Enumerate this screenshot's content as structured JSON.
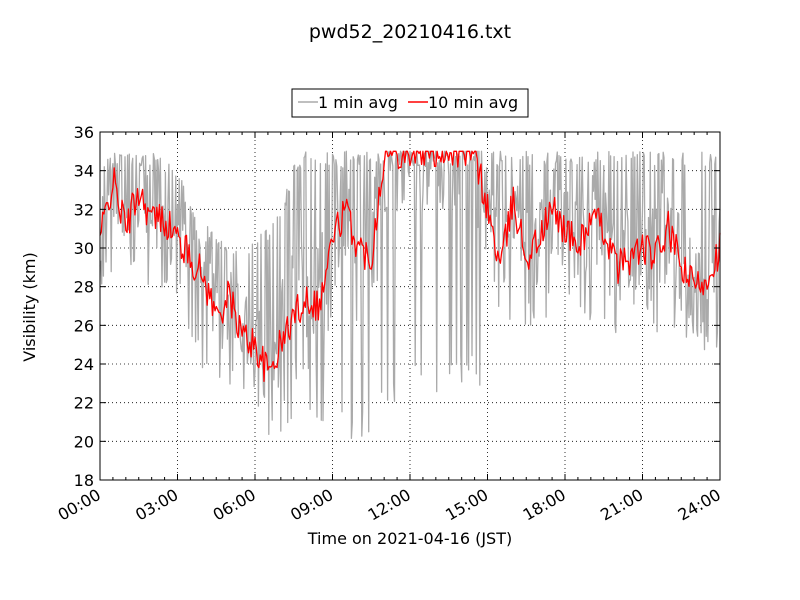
{
  "chart_data": {
    "type": "line",
    "title": "pwd52_20210416.txt",
    "xlabel": "Time on 2021-04-16 (JST)",
    "ylabel": "Visibility (km)",
    "xlim": [
      "00:00",
      "24:00"
    ],
    "ylim": [
      18,
      36
    ],
    "x_ticks": [
      "00:00",
      "03:00",
      "06:00",
      "09:00",
      "12:00",
      "15:00",
      "18:00",
      "21:00",
      "24:00"
    ],
    "y_ticks": [
      18,
      20,
      22,
      24,
      26,
      28,
      30,
      32,
      34,
      36
    ],
    "grid": true,
    "legend_position": "top-center",
    "series": [
      {
        "name": "1 min avg",
        "color": "#aaaaaa",
        "x": [
          "00:00",
          "00:30",
          "01:00",
          "01:30",
          "02:00",
          "02:30",
          "03:00",
          "03:30",
          "04:00",
          "04:30",
          "05:00",
          "05:30",
          "06:00",
          "06:30",
          "07:00",
          "07:30",
          "08:00",
          "08:30",
          "09:00",
          "09:30",
          "10:00",
          "10:30",
          "11:00",
          "11:30",
          "12:00",
          "12:30",
          "13:00",
          "13:30",
          "14:00",
          "14:30",
          "15:00",
          "15:30",
          "16:00",
          "16:30",
          "17:00",
          "17:30",
          "18:00",
          "18:30",
          "19:00",
          "19:30",
          "20:00",
          "20:30",
          "21:00",
          "21:30",
          "22:00",
          "22:30",
          "23:00",
          "23:30",
          "24:00"
        ],
        "low": [
          28.0,
          28.5,
          29.0,
          28.5,
          27.5,
          27.5,
          27.0,
          25.5,
          23.5,
          22.5,
          22.5,
          22.0,
          21.5,
          20.0,
          19.5,
          21.0,
          21.5,
          20.5,
          21.0,
          20.0,
          20.0,
          20.5,
          21.5,
          21.5,
          22.5,
          23.0,
          22.5,
          23.5,
          23.0,
          24.0,
          20.0,
          26.0,
          25.5,
          26.0,
          26.0,
          26.5,
          26.0,
          26.5,
          25.5,
          25.5,
          22.0,
          25.5,
          26.0,
          25.0,
          26.0,
          25.5,
          25.0,
          24.5,
          25.0
        ],
        "high": [
          35.0,
          35.0,
          35.0,
          35.0,
          35.0,
          34.5,
          34.0,
          32.5,
          31.5,
          31.0,
          30.5,
          30.0,
          30.5,
          31.0,
          32.0,
          34.5,
          35.0,
          35.0,
          35.0,
          35.0,
          35.0,
          35.0,
          35.0,
          35.0,
          35.0,
          35.0,
          35.0,
          35.0,
          35.0,
          35.0,
          35.0,
          35.0,
          35.0,
          35.0,
          35.0,
          35.0,
          35.0,
          35.0,
          35.0,
          35.0,
          35.0,
          35.0,
          35.0,
          35.0,
          35.0,
          35.0,
          35.0,
          35.0,
          35.0
        ]
      },
      {
        "name": "10 min avg",
        "color": "#ff0000",
        "x": [
          "00:00",
          "00:30",
          "01:00",
          "01:30",
          "02:00",
          "02:30",
          "03:00",
          "03:30",
          "04:00",
          "04:30",
          "05:00",
          "05:30",
          "06:00",
          "06:30",
          "07:00",
          "07:30",
          "08:00",
          "08:30",
          "09:00",
          "09:30",
          "10:00",
          "10:30",
          "11:00",
          "11:30",
          "12:00",
          "12:30",
          "13:00",
          "13:30",
          "14:00",
          "14:30",
          "15:00",
          "15:30",
          "16:00",
          "16:30",
          "17:00",
          "17:30",
          "18:00",
          "18:30",
          "19:00",
          "19:30",
          "20:00",
          "20:30",
          "21:00",
          "21:30",
          "22:00",
          "22:30",
          "23:00",
          "23:30",
          "24:00"
        ],
        "values": [
          30.5,
          33.5,
          31.0,
          33.0,
          31.5,
          31.5,
          30.5,
          29.5,
          28.5,
          26.5,
          27.5,
          25.5,
          25.0,
          23.5,
          25.0,
          26.5,
          27.5,
          27.0,
          30.5,
          32.0,
          30.0,
          29.5,
          35.0,
          35.0,
          35.0,
          35.0,
          35.0,
          35.0,
          35.0,
          35.0,
          32.0,
          29.0,
          32.5,
          29.5,
          30.5,
          32.0,
          31.0,
          30.0,
          31.5,
          31.0,
          29.0,
          29.5,
          30.0,
          29.5,
          31.0,
          29.0,
          28.0,
          28.5,
          30.0
        ]
      }
    ]
  }
}
